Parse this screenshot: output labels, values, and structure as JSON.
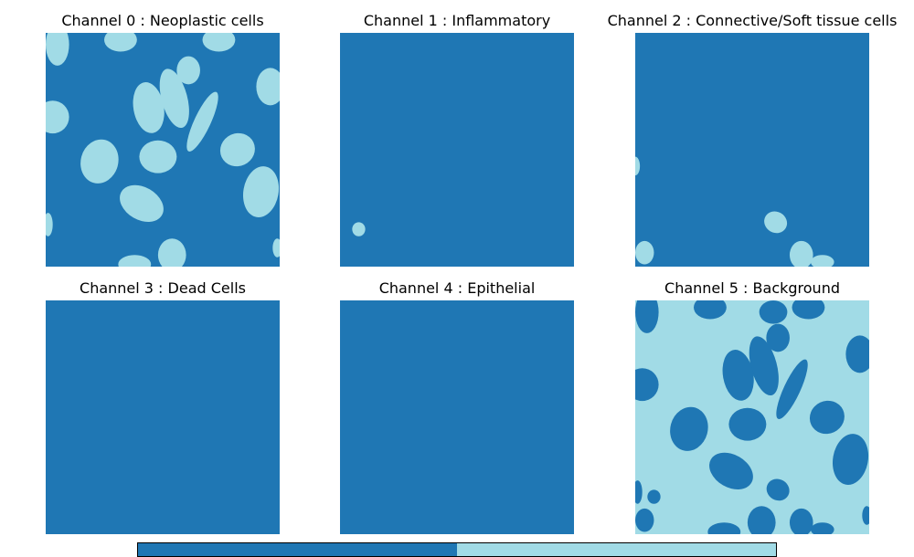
{
  "figure": {
    "colors": {
      "low": "#1f77b4",
      "high": "#a1dbe6"
    }
  },
  "chart_data": {
    "type": "heatmap",
    "value_range": [
      0,
      1
    ],
    "colorbar": {
      "segments": [
        {
          "value": 0,
          "color": "#1f77b4"
        },
        {
          "value": 1,
          "color": "#a1dbe6"
        }
      ]
    },
    "panels": [
      {
        "title": "Channel 0 : Neoplastic cells",
        "background_value": 0,
        "blob_value": 1,
        "blobs": [
          {
            "cx": 0.05,
            "cy": 0.05,
            "rx": 0.05,
            "ry": 0.09,
            "rot": 0
          },
          {
            "cx": 0.32,
            "cy": 0.03,
            "rx": 0.07,
            "ry": 0.05,
            "rot": 0
          },
          {
            "cx": 0.74,
            "cy": 0.03,
            "rx": 0.07,
            "ry": 0.05,
            "rot": 0
          },
          {
            "cx": 0.61,
            "cy": 0.16,
            "rx": 0.05,
            "ry": 0.06,
            "rot": 0
          },
          {
            "cx": 0.55,
            "cy": 0.28,
            "rx": 0.055,
            "ry": 0.13,
            "rot": -15
          },
          {
            "cx": 0.44,
            "cy": 0.32,
            "rx": 0.065,
            "ry": 0.11,
            "rot": -10
          },
          {
            "cx": 0.96,
            "cy": 0.23,
            "rx": 0.06,
            "ry": 0.08,
            "rot": 0
          },
          {
            "cx": 0.03,
            "cy": 0.36,
            "rx": 0.07,
            "ry": 0.07,
            "rot": 0
          },
          {
            "cx": 0.67,
            "cy": 0.38,
            "rx": 0.035,
            "ry": 0.14,
            "rot": 25
          },
          {
            "cx": 0.82,
            "cy": 0.5,
            "rx": 0.075,
            "ry": 0.07,
            "rot": -25
          },
          {
            "cx": 0.48,
            "cy": 0.53,
            "rx": 0.08,
            "ry": 0.07,
            "rot": 0
          },
          {
            "cx": 0.23,
            "cy": 0.55,
            "rx": 0.08,
            "ry": 0.095,
            "rot": 15
          },
          {
            "cx": 0.92,
            "cy": 0.68,
            "rx": 0.075,
            "ry": 0.11,
            "rot": 10
          },
          {
            "cx": 0.41,
            "cy": 0.73,
            "rx": 0.1,
            "ry": 0.07,
            "rot": 30
          },
          {
            "cx": 0.01,
            "cy": 0.82,
            "rx": 0.02,
            "ry": 0.05,
            "rot": 0
          },
          {
            "cx": 0.54,
            "cy": 0.95,
            "rx": 0.06,
            "ry": 0.07,
            "rot": 0
          },
          {
            "cx": 0.38,
            "cy": 0.99,
            "rx": 0.07,
            "ry": 0.04,
            "rot": 0
          },
          {
            "cx": 0.99,
            "cy": 0.92,
            "rx": 0.02,
            "ry": 0.04,
            "rot": 0
          }
        ]
      },
      {
        "title": "Channel 1 : Inflammatory",
        "background_value": 0,
        "blob_value": 1,
        "blobs": [
          {
            "cx": 0.08,
            "cy": 0.84,
            "rx": 0.028,
            "ry": 0.03,
            "rot": 0
          }
        ]
      },
      {
        "title": "Channel 2 : Connective/Soft tissue cells",
        "background_value": 0,
        "blob_value": 1,
        "blobs": [
          {
            "cx": 0.0,
            "cy": 0.57,
            "rx": 0.02,
            "ry": 0.04,
            "rot": 0
          },
          {
            "cx": 0.6,
            "cy": 0.81,
            "rx": 0.05,
            "ry": 0.045,
            "rot": 30
          },
          {
            "cx": 0.04,
            "cy": 0.94,
            "rx": 0.04,
            "ry": 0.05,
            "rot": 0
          },
          {
            "cx": 0.71,
            "cy": 0.95,
            "rx": 0.05,
            "ry": 0.06,
            "rot": 0
          },
          {
            "cx": 0.8,
            "cy": 0.98,
            "rx": 0.05,
            "ry": 0.03,
            "rot": 0
          }
        ]
      },
      {
        "title": "Channel 3 : Dead Cells",
        "background_value": 0,
        "blob_value": 1,
        "blobs": []
      },
      {
        "title": "Channel 4 : Epithelial",
        "background_value": 0,
        "blob_value": 1,
        "blobs": []
      },
      {
        "title": "Channel 5 : Background",
        "background_value": 1,
        "blob_value": 0,
        "blobs": [
          {
            "cx": 0.05,
            "cy": 0.05,
            "rx": 0.05,
            "ry": 0.09,
            "rot": 0
          },
          {
            "cx": 0.32,
            "cy": 0.03,
            "rx": 0.07,
            "ry": 0.05,
            "rot": 0
          },
          {
            "cx": 0.59,
            "cy": 0.05,
            "rx": 0.06,
            "ry": 0.05,
            "rot": 0
          },
          {
            "cx": 0.74,
            "cy": 0.03,
            "rx": 0.07,
            "ry": 0.05,
            "rot": 0
          },
          {
            "cx": 0.61,
            "cy": 0.16,
            "rx": 0.05,
            "ry": 0.06,
            "rot": 0
          },
          {
            "cx": 0.55,
            "cy": 0.28,
            "rx": 0.055,
            "ry": 0.13,
            "rot": -15
          },
          {
            "cx": 0.44,
            "cy": 0.32,
            "rx": 0.065,
            "ry": 0.11,
            "rot": -10
          },
          {
            "cx": 0.96,
            "cy": 0.23,
            "rx": 0.06,
            "ry": 0.08,
            "rot": 0
          },
          {
            "cx": 0.03,
            "cy": 0.36,
            "rx": 0.07,
            "ry": 0.07,
            "rot": 0
          },
          {
            "cx": 0.67,
            "cy": 0.38,
            "rx": 0.035,
            "ry": 0.14,
            "rot": 25
          },
          {
            "cx": 0.82,
            "cy": 0.5,
            "rx": 0.075,
            "ry": 0.07,
            "rot": -25
          },
          {
            "cx": 0.48,
            "cy": 0.53,
            "rx": 0.08,
            "ry": 0.07,
            "rot": 0
          },
          {
            "cx": 0.23,
            "cy": 0.55,
            "rx": 0.08,
            "ry": 0.095,
            "rot": 15
          },
          {
            "cx": 0.92,
            "cy": 0.68,
            "rx": 0.075,
            "ry": 0.11,
            "rot": 10
          },
          {
            "cx": 0.41,
            "cy": 0.73,
            "rx": 0.1,
            "ry": 0.07,
            "rot": 30
          },
          {
            "cx": 0.61,
            "cy": 0.81,
            "rx": 0.05,
            "ry": 0.045,
            "rot": 30
          },
          {
            "cx": 0.08,
            "cy": 0.84,
            "rx": 0.028,
            "ry": 0.03,
            "rot": 0
          },
          {
            "cx": 0.01,
            "cy": 0.82,
            "rx": 0.02,
            "ry": 0.05,
            "rot": 0
          },
          {
            "cx": 0.04,
            "cy": 0.94,
            "rx": 0.04,
            "ry": 0.05,
            "rot": 0
          },
          {
            "cx": 0.54,
            "cy": 0.95,
            "rx": 0.06,
            "ry": 0.07,
            "rot": 0
          },
          {
            "cx": 0.38,
            "cy": 0.99,
            "rx": 0.07,
            "ry": 0.04,
            "rot": 0
          },
          {
            "cx": 0.71,
            "cy": 0.95,
            "rx": 0.05,
            "ry": 0.06,
            "rot": 0
          },
          {
            "cx": 0.8,
            "cy": 0.98,
            "rx": 0.05,
            "ry": 0.03,
            "rot": 0
          },
          {
            "cx": 0.99,
            "cy": 0.92,
            "rx": 0.02,
            "ry": 0.04,
            "rot": 0
          }
        ]
      }
    ]
  }
}
